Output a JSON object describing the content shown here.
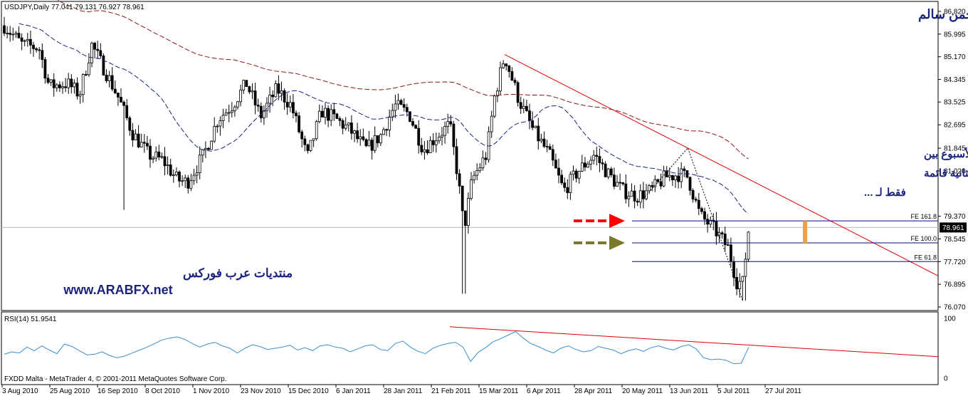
{
  "header": {
    "symbol_line": "USDJPY,Daily  77.041 79.131 76.927 78.961",
    "author": "د.عبد الرحمن سالم"
  },
  "annotation": {
    "lines": [
      "قليلاً من التذبذب هذا الأسبوع بين",
      "المنطقة المحددة وإحتمالية الثانية قائمة",
      "فقط لـ ..."
    ]
  },
  "watermark": {
    "forum_name": "منتديات عرب فوركس",
    "url": "www.ARABFX.net"
  },
  "footer": {
    "copyright": "FXDD Malta - MetaTrader 4, © 2001-2011 MetaQuotes Software Corp."
  },
  "colors": {
    "background": "#ffffff",
    "candle": "#000000",
    "ma_blue": "#1a237e",
    "ma_red": "#8b1a1a",
    "trendline": "#e00000",
    "fib_line": "#0a0a80",
    "arrow_red": "#ff0000",
    "arrow_olive": "#7a7a2a",
    "orange_bar": "#f0a040",
    "rsi_line": "#3a8fd0",
    "annotation_text": "#1a237e"
  },
  "chart_data": [
    {
      "type": "candlestick",
      "title": "USDJPY,Daily",
      "ohlc_current": {
        "open": 77.041,
        "high": 79.131,
        "low": 76.927,
        "close": 78.961
      },
      "y_ticks": [
        86.82,
        85.995,
        85.17,
        84.345,
        83.525,
        82.695,
        81.845,
        81.02,
        79.37,
        78.545,
        77.72,
        76.895,
        76.07
      ],
      "y_tick_labels": [
        "86.820",
        "85.995",
        "85.170",
        "84.345",
        "83.525",
        "82.695",
        "81.845",
        "81.020",
        "79.370",
        "78.545",
        "77.720",
        "76.895",
        "76.070"
      ],
      "ylim": [
        76.07,
        86.82
      ],
      "current_price_label": "78.961",
      "current_price": 78.961,
      "x_tick_labels": [
        "3 Aug 2010",
        "25 Aug 2010",
        "16 Sep 2010",
        "8 Oct 2010",
        "1 Nov 2010",
        "23 Nov 2010",
        "15 Dec 2010",
        "6 Jan 2011",
        "28 Jan 2011",
        "21 Feb 2011",
        "15 Mar 2011",
        "6 Apr 2011",
        "28 Apr 2011",
        "20 May 2011",
        "13 Jun 2011",
        "5 Jul 2011",
        "27 Jul 2011"
      ],
      "close_path": [
        {
          "date": "2010-08-03",
          "close": 86.3
        },
        {
          "date": "2010-08-12",
          "close": 85.6
        },
        {
          "date": "2010-08-20",
          "close": 85.5
        },
        {
          "date": "2010-08-25",
          "close": 84.1
        },
        {
          "date": "2010-09-03",
          "close": 84.2
        },
        {
          "date": "2010-09-09",
          "close": 83.8
        },
        {
          "date": "2010-09-15",
          "close": 85.6
        },
        {
          "date": "2010-09-22",
          "close": 84.6
        },
        {
          "date": "2010-09-28",
          "close": 83.7
        },
        {
          "date": "2010-10-05",
          "close": 82.4
        },
        {
          "date": "2010-10-13",
          "close": 81.6
        },
        {
          "date": "2010-10-20",
          "close": 81.4
        },
        {
          "date": "2010-10-27",
          "close": 80.7
        },
        {
          "date": "2010-11-01",
          "close": 80.6
        },
        {
          "date": "2010-11-09",
          "close": 81.6
        },
        {
          "date": "2010-11-16",
          "close": 82.9
        },
        {
          "date": "2010-11-23",
          "close": 83.4
        },
        {
          "date": "2010-11-30",
          "close": 84.2
        },
        {
          "date": "2010-12-07",
          "close": 83.0
        },
        {
          "date": "2010-12-15",
          "close": 84.0
        },
        {
          "date": "2010-12-22",
          "close": 83.4
        },
        {
          "date": "2010-12-30",
          "close": 81.5
        },
        {
          "date": "2011-01-06",
          "close": 83.2
        },
        {
          "date": "2011-01-13",
          "close": 82.9
        },
        {
          "date": "2011-01-20",
          "close": 82.5
        },
        {
          "date": "2011-01-28",
          "close": 81.8
        },
        {
          "date": "2011-02-04",
          "close": 82.3
        },
        {
          "date": "2011-02-11",
          "close": 83.4
        },
        {
          "date": "2011-02-18",
          "close": 83.1
        },
        {
          "date": "2011-02-25",
          "close": 81.8
        },
        {
          "date": "2011-03-04",
          "close": 82.3
        },
        {
          "date": "2011-03-10",
          "close": 82.7
        },
        {
          "date": "2011-03-14",
          "close": 80.8
        },
        {
          "date": "2011-03-17",
          "close": 78.9
        },
        {
          "date": "2011-03-21",
          "close": 80.7
        },
        {
          "date": "2011-03-28",
          "close": 81.6
        },
        {
          "date": "2011-04-01",
          "close": 83.7
        },
        {
          "date": "2011-04-06",
          "close": 85.2
        },
        {
          "date": "2011-04-13",
          "close": 83.6
        },
        {
          "date": "2011-04-20",
          "close": 82.5
        },
        {
          "date": "2011-04-28",
          "close": 81.6
        },
        {
          "date": "2011-05-05",
          "close": 80.3
        },
        {
          "date": "2011-05-12",
          "close": 81.0
        },
        {
          "date": "2011-05-20",
          "close": 81.6
        },
        {
          "date": "2011-05-27",
          "close": 80.9
        },
        {
          "date": "2011-06-03",
          "close": 80.3
        },
        {
          "date": "2011-06-10",
          "close": 80.1
        },
        {
          "date": "2011-06-17",
          "close": 80.3
        },
        {
          "date": "2011-06-24",
          "close": 80.8
        },
        {
          "date": "2011-07-01",
          "close": 80.9
        },
        {
          "date": "2011-07-05",
          "close": 80.8
        },
        {
          "date": "2011-07-11",
          "close": 79.4
        },
        {
          "date": "2011-07-18",
          "close": 78.9
        },
        {
          "date": "2011-07-25",
          "close": 78.2
        },
        {
          "date": "2011-07-29",
          "close": 77.0
        },
        {
          "date": "2011-08-01",
          "close": 76.95
        },
        {
          "date": "2011-08-04",
          "close": 78.961
        }
      ],
      "fibonacci_levels": [
        {
          "label": "FE 161.8",
          "price": 79.2
        },
        {
          "label": "FE 100.0",
          "price": 78.4
        },
        {
          "label": "FE 61.8",
          "price": 77.72
        }
      ]
    },
    {
      "type": "line",
      "title": "RSI(14) 51.9541",
      "y_tick_labels": [
        "100",
        "0"
      ],
      "ylim": [
        0,
        100
      ],
      "values": [
        40,
        44,
        42,
        52,
        46,
        54,
        47,
        41,
        57,
        53,
        46,
        39,
        40,
        44,
        38,
        34,
        37,
        42,
        47,
        52,
        58,
        64,
        67,
        69,
        65,
        58,
        52,
        57,
        60,
        54,
        50,
        42,
        50,
        56,
        53,
        48,
        50,
        52,
        55,
        47,
        51,
        46,
        54,
        56,
        52,
        50,
        44,
        49,
        54,
        56,
        48,
        46,
        58,
        62,
        52,
        45,
        41,
        50,
        55,
        58,
        60,
        52,
        28,
        43,
        51,
        61,
        66,
        72,
        78,
        67,
        58,
        53,
        47,
        42,
        50,
        54,
        48,
        44,
        46,
        53,
        50,
        47,
        41,
        46,
        49,
        45,
        51,
        54,
        50,
        47,
        53,
        56,
        49,
        34,
        31,
        32,
        30,
        24,
        25,
        52
      ],
      "current": 51.9541
    }
  ]
}
